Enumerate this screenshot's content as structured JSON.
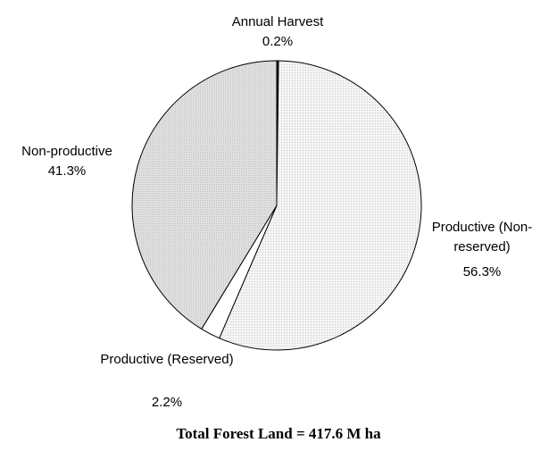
{
  "chart_data": {
    "type": "pie",
    "caption": "Total Forest Land = 417.6 M ha",
    "categories": [
      "Annual Harvest",
      "Productive (Non-reserved)",
      "Productive (Reserved)",
      "Non-productive"
    ],
    "values": [
      0.2,
      56.3,
      2.2,
      41.3
    ],
    "value_labels": [
      "0.2%",
      "56.3%",
      "2.2%",
      "41.3%"
    ],
    "colors": [
      "#000000",
      "url(#dots)",
      "#ffffff",
      "url(#dots2)"
    ]
  }
}
